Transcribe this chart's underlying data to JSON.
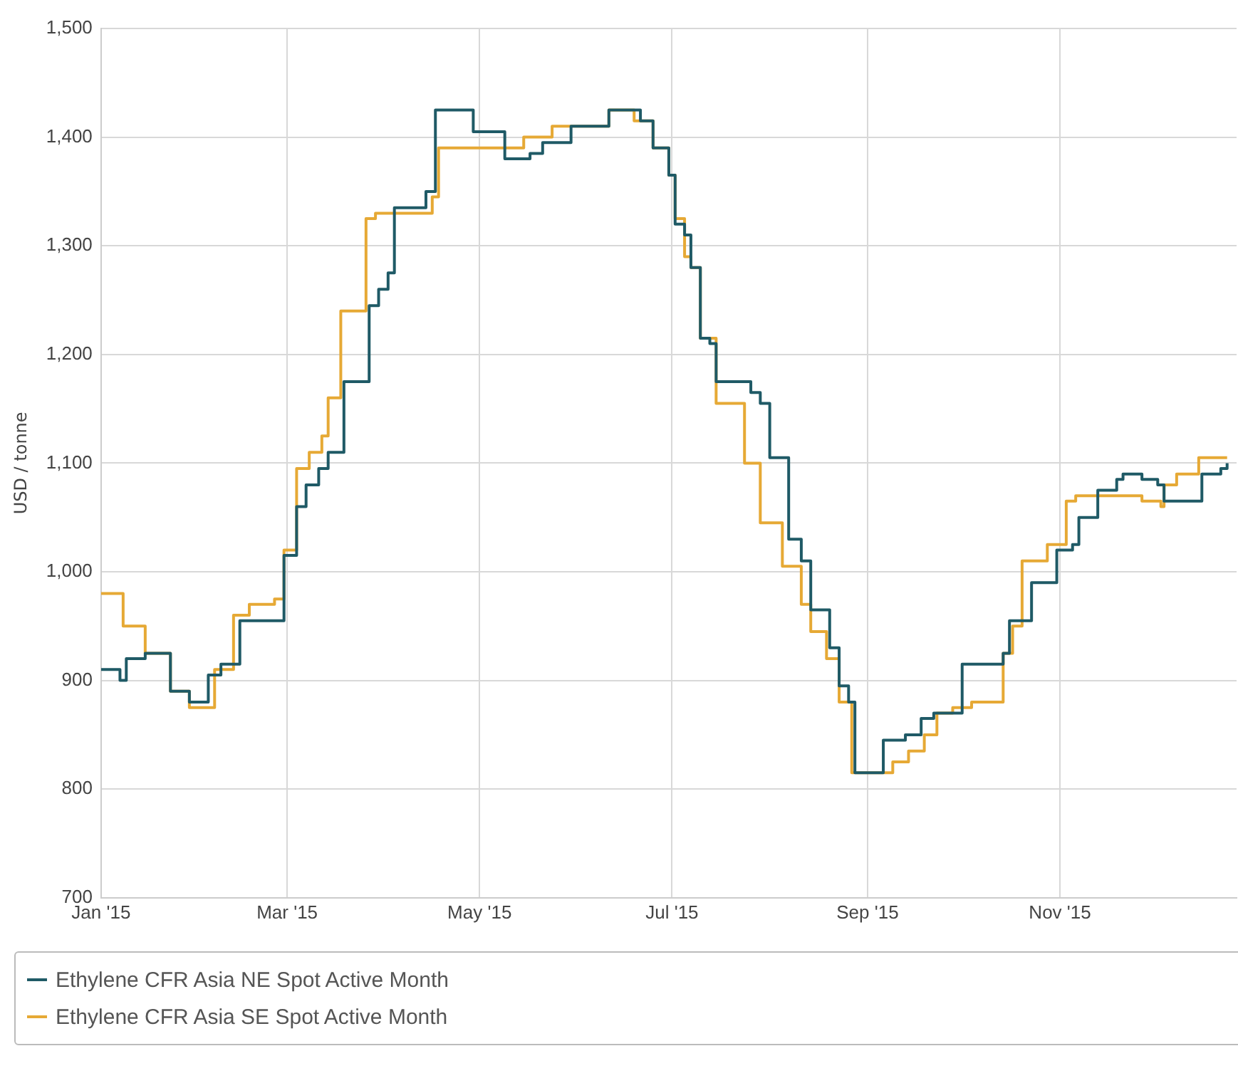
{
  "chart_data": {
    "type": "step",
    "ylabel": "USD / tonne",
    "ylim": [
      700,
      1500
    ],
    "yticks": [
      {
        "value": 700,
        "label": "700"
      },
      {
        "value": 800,
        "label": "800"
      },
      {
        "value": 900,
        "label": "900"
      },
      {
        "value": 1000,
        "label": "1,000"
      },
      {
        "value": 1100,
        "label": "1,100"
      },
      {
        "value": 1200,
        "label": "1,200"
      },
      {
        "value": 1300,
        "label": "1,300"
      },
      {
        "value": 1400,
        "label": "1,400"
      },
      {
        "value": 1500,
        "label": "1,500"
      }
    ],
    "xlim": [
      "2015-01-01",
      "2015-12-27"
    ],
    "xticks": [
      {
        "value": "2015-01-01",
        "label": "Jan '15"
      },
      {
        "value": "2015-03-01",
        "label": "Mar '15"
      },
      {
        "value": "2015-05-01",
        "label": "May '15"
      },
      {
        "value": "2015-07-01",
        "label": "Jul '15"
      },
      {
        "value": "2015-09-01",
        "label": "Sep '15"
      },
      {
        "value": "2015-11-01",
        "label": "Nov '15"
      }
    ],
    "grid": true,
    "legend": "bottom",
    "series": [
      {
        "name": "Ethylene CFR Asia NE Spot Active Month",
        "color": "#1f5a66",
        "x": [
          "2015-01-01",
          "2015-01-07",
          "2015-01-09",
          "2015-01-15",
          "2015-01-23",
          "2015-01-29",
          "2015-02-04",
          "2015-02-08",
          "2015-02-14",
          "2015-02-28",
          "2015-03-04",
          "2015-03-07",
          "2015-03-11",
          "2015-03-14",
          "2015-03-19",
          "2015-03-27",
          "2015-03-30",
          "2015-04-02",
          "2015-04-04",
          "2015-04-14",
          "2015-04-17",
          "2015-04-29",
          "2015-05-09",
          "2015-05-17",
          "2015-05-21",
          "2015-05-30",
          "2015-06-11",
          "2015-06-21",
          "2015-06-25",
          "2015-06-30",
          "2015-07-02",
          "2015-07-05",
          "2015-07-07",
          "2015-07-10",
          "2015-07-13",
          "2015-07-15",
          "2015-07-26",
          "2015-07-29",
          "2015-08-01",
          "2015-08-07",
          "2015-08-11",
          "2015-08-14",
          "2015-08-20",
          "2015-08-23",
          "2015-08-26",
          "2015-08-28",
          "2015-09-06",
          "2015-09-13",
          "2015-09-18",
          "2015-09-22",
          "2015-10-01",
          "2015-10-09",
          "2015-10-14",
          "2015-10-16",
          "2015-10-23",
          "2015-10-31",
          "2015-11-05",
          "2015-11-07",
          "2015-11-13",
          "2015-11-19",
          "2015-11-21",
          "2015-11-27",
          "2015-12-02",
          "2015-12-04",
          "2015-12-16",
          "2015-12-22",
          "2015-12-24"
        ],
        "values": [
          910,
          900,
          920,
          925,
          890,
          880,
          905,
          915,
          955,
          1015,
          1060,
          1080,
          1095,
          1110,
          1175,
          1245,
          1260,
          1275,
          1335,
          1350,
          1425,
          1405,
          1380,
          1385,
          1395,
          1410,
          1425,
          1415,
          1390,
          1365,
          1320,
          1310,
          1280,
          1215,
          1210,
          1175,
          1165,
          1155,
          1105,
          1030,
          1010,
          965,
          930,
          895,
          880,
          815,
          845,
          850,
          865,
          870,
          915,
          915,
          925,
          955,
          990,
          1020,
          1025,
          1050,
          1075,
          1085,
          1090,
          1085,
          1080,
          1065,
          1090,
          1095,
          1100
        ]
      },
      {
        "name": "Ethylene CFR Asia SE Spot Active Month",
        "color": "#e6a935",
        "x": [
          "2015-01-01",
          "2015-01-08",
          "2015-01-15",
          "2015-01-23",
          "2015-01-29",
          "2015-02-06",
          "2015-02-12",
          "2015-02-17",
          "2015-02-25",
          "2015-02-28",
          "2015-03-04",
          "2015-03-08",
          "2015-03-12",
          "2015-03-14",
          "2015-03-18",
          "2015-03-26",
          "2015-03-29",
          "2015-04-16",
          "2015-04-18",
          "2015-05-15",
          "2015-05-24",
          "2015-06-11",
          "2015-06-19",
          "2015-06-25",
          "2015-06-30",
          "2015-07-02",
          "2015-07-05",
          "2015-07-07",
          "2015-07-10",
          "2015-07-15",
          "2015-07-24",
          "2015-07-29",
          "2015-08-05",
          "2015-08-11",
          "2015-08-14",
          "2015-08-19",
          "2015-08-23",
          "2015-08-27",
          "2015-09-09",
          "2015-09-14",
          "2015-09-19",
          "2015-09-23",
          "2015-09-28",
          "2015-10-04",
          "2015-10-14",
          "2015-10-17",
          "2015-10-20",
          "2015-10-28",
          "2015-11-03",
          "2015-11-06",
          "2015-11-27",
          "2015-12-03",
          "2015-12-04",
          "2015-12-08",
          "2015-12-15",
          "2015-12-24"
        ],
        "values": [
          980,
          950,
          925,
          890,
          875,
          910,
          960,
          970,
          975,
          1020,
          1095,
          1110,
          1125,
          1160,
          1240,
          1325,
          1330,
          1345,
          1390,
          1400,
          1410,
          1425,
          1415,
          1390,
          1365,
          1325,
          1290,
          1280,
          1215,
          1155,
          1100,
          1045,
          1005,
          970,
          945,
          920,
          880,
          815,
          825,
          835,
          850,
          870,
          875,
          880,
          925,
          950,
          1010,
          1025,
          1065,
          1070,
          1065,
          1060,
          1080,
          1090,
          1105,
          1105
        ]
      }
    ]
  }
}
